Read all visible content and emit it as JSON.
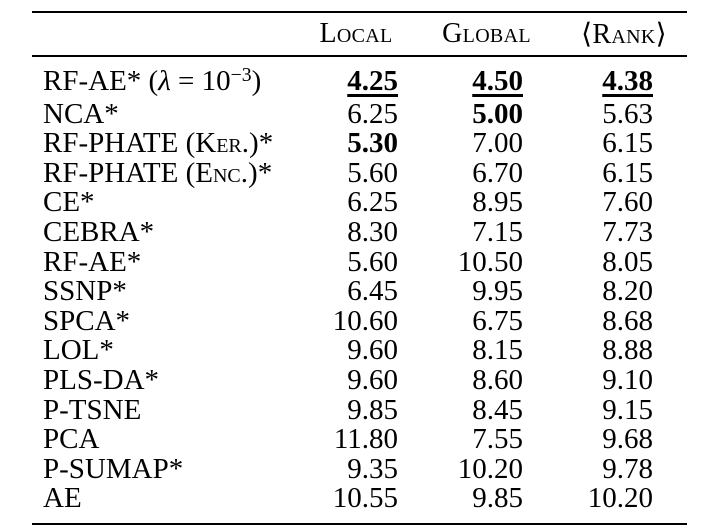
{
  "page": {
    "background_color": "#ffffff",
    "text_color": "#000000"
  },
  "table": {
    "columns": [
      {
        "label": ""
      },
      {
        "label": "Local"
      },
      {
        "label": "Global"
      },
      {
        "label": "⟨Rank⟩"
      }
    ],
    "rows": [
      {
        "label": [
          {
            "t": "RF-AE* ("
          },
          {
            "t": "λ",
            "italic": true
          },
          {
            "t": " = 10"
          },
          {
            "t": "−3",
            "sup": true
          },
          {
            "t": ")"
          }
        ],
        "values": [
          {
            "v": "4.25",
            "bold": true,
            "underline": true
          },
          {
            "v": "4.50",
            "bold": true,
            "underline": true
          },
          {
            "v": "4.38",
            "bold": true,
            "underline": true
          }
        ]
      },
      {
        "label": [
          {
            "t": "NCA*"
          }
        ],
        "values": [
          {
            "v": "6.25"
          },
          {
            "v": "5.00",
            "bold": true
          },
          {
            "v": "5.63"
          }
        ]
      },
      {
        "label": [
          {
            "t": "RF-PHATE (K"
          },
          {
            "t": "er.",
            "smallcaps": true
          },
          {
            "t": ")*"
          }
        ],
        "values": [
          {
            "v": "5.30",
            "bold": true
          },
          {
            "v": "7.00"
          },
          {
            "v": "6.15"
          }
        ]
      },
      {
        "label": [
          {
            "t": "RF-PHATE (E"
          },
          {
            "t": "nc.",
            "smallcaps": true
          },
          {
            "t": ")*"
          }
        ],
        "values": [
          {
            "v": "5.60"
          },
          {
            "v": "6.70"
          },
          {
            "v": "6.15"
          }
        ]
      },
      {
        "label": [
          {
            "t": "CE*"
          }
        ],
        "values": [
          {
            "v": "6.25"
          },
          {
            "v": "8.95"
          },
          {
            "v": "7.60"
          }
        ]
      },
      {
        "label": [
          {
            "t": "CEBRA*"
          }
        ],
        "values": [
          {
            "v": "8.30"
          },
          {
            "v": "7.15"
          },
          {
            "v": "7.73"
          }
        ]
      },
      {
        "label": [
          {
            "t": "RF-AE*"
          }
        ],
        "values": [
          {
            "v": "5.60"
          },
          {
            "v": "10.50"
          },
          {
            "v": "8.05"
          }
        ]
      },
      {
        "label": [
          {
            "t": "SSNP*"
          }
        ],
        "values": [
          {
            "v": "6.45"
          },
          {
            "v": "9.95"
          },
          {
            "v": "8.20"
          }
        ]
      },
      {
        "label": [
          {
            "t": "SPCA*"
          }
        ],
        "values": [
          {
            "v": "10.60"
          },
          {
            "v": "6.75"
          },
          {
            "v": "8.68"
          }
        ]
      },
      {
        "label": [
          {
            "t": "LOL*"
          }
        ],
        "values": [
          {
            "v": "9.60"
          },
          {
            "v": "8.15"
          },
          {
            "v": "8.88"
          }
        ]
      },
      {
        "label": [
          {
            "t": "PLS-DA*"
          }
        ],
        "values": [
          {
            "v": "9.60"
          },
          {
            "v": "8.60"
          },
          {
            "v": "9.10"
          }
        ]
      },
      {
        "label": [
          {
            "t": "P-TSNE"
          }
        ],
        "values": [
          {
            "v": "9.85"
          },
          {
            "v": "8.45"
          },
          {
            "v": "9.15"
          }
        ]
      },
      {
        "label": [
          {
            "t": "PCA"
          }
        ],
        "values": [
          {
            "v": "11.80"
          },
          {
            "v": "7.55"
          },
          {
            "v": "9.68"
          }
        ]
      },
      {
        "label": [
          {
            "t": "P-SUMAP*"
          }
        ],
        "values": [
          {
            "v": "9.35"
          },
          {
            "v": "10.20"
          },
          {
            "v": "9.78"
          }
        ]
      },
      {
        "label": [
          {
            "t": "AE"
          }
        ],
        "values": [
          {
            "v": "10.55"
          },
          {
            "v": "9.85"
          },
          {
            "v": "10.20"
          }
        ]
      }
    ]
  }
}
